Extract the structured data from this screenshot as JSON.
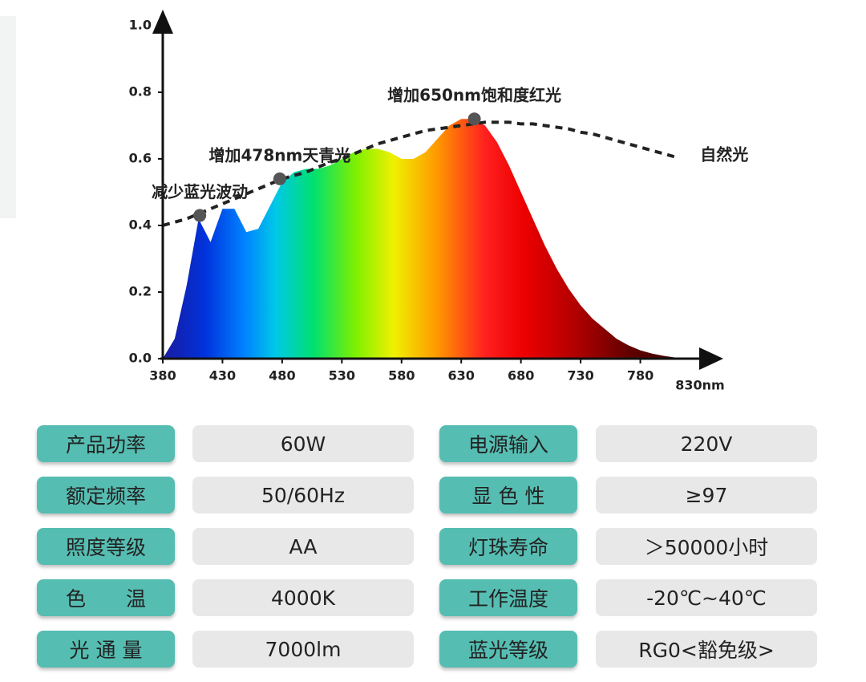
{
  "chart_data": {
    "type": "area",
    "x": [
      380,
      390,
      400,
      410,
      420,
      430,
      440,
      450,
      460,
      470,
      480,
      490,
      500,
      510,
      520,
      530,
      540,
      550,
      560,
      570,
      580,
      590,
      600,
      610,
      620,
      630,
      640,
      650,
      660,
      670,
      680,
      690,
      700,
      710,
      720,
      730,
      740,
      750,
      760,
      770,
      780,
      790,
      800,
      810,
      820
    ],
    "series": [
      {
        "values": [
          0,
          0.06,
          0.22,
          0.42,
          0.35,
          0.45,
          0.45,
          0.38,
          0.39,
          0.46,
          0.53,
          0.56,
          0.57,
          0.57,
          0.58,
          0.6,
          0.62,
          0.63,
          0.63,
          0.62,
          0.6,
          0.6,
          0.62,
          0.66,
          0.7,
          0.72,
          0.72,
          0.7,
          0.65,
          0.58,
          0.5,
          0.42,
          0.34,
          0.27,
          0.21,
          0.16,
          0.12,
          0.09,
          0.06,
          0.04,
          0.025,
          0.015,
          0.008,
          0.003,
          0
        ]
      },
      {
        "name": "自然光",
        "color": "#222222",
        "dashed": true,
        "values": [
          0.4,
          0.41,
          0.42,
          0.435,
          0.45,
          0.465,
          0.48,
          0.495,
          0.51,
          0.525,
          0.54,
          0.55,
          0.56,
          0.575,
          0.59,
          0.6,
          0.615,
          0.63,
          0.645,
          0.655,
          0.665,
          0.675,
          0.685,
          0.69,
          0.695,
          0.7,
          0.705,
          0.71,
          0.71,
          0.71,
          0.705,
          0.705,
          0.7,
          0.695,
          0.69,
          0.68,
          0.675,
          0.665,
          0.655,
          0.645,
          0.635,
          0.625,
          0.615,
          0.605,
          null
        ]
      }
    ],
    "xlim": [
      380,
      830
    ],
    "ylim": [
      0,
      1
    ],
    "xticks": [
      380,
      430,
      480,
      530,
      580,
      630,
      680,
      730,
      780,
      {
        "value": 830,
        "label": "830nm"
      }
    ],
    "yticks": [
      {
        "value": 0,
        "label": "0.0"
      },
      0.2,
      0.4,
      0.6,
      0.8,
      {
        "value": 1,
        "label": "1.0"
      }
    ],
    "annotations": [
      {
        "text": "减少蓝光波动",
        "x": 411,
        "y": 0.43
      },
      {
        "text": "增加478nm天青光",
        "x": 478,
        "y": 0.54
      },
      {
        "text": "增加650nm饱和度红光",
        "x": 641,
        "y": 0.72
      }
    ]
  },
  "table": {
    "rows": [
      [
        "产品功率",
        "60W",
        "电源输入",
        "220V"
      ],
      [
        "额定频率",
        "50/60Hz",
        "显 色 性",
        "≥97"
      ],
      [
        "照度等级",
        "AA",
        "灯珠寿命",
        "＞50000小时"
      ],
      [
        "色　　温",
        "4000K",
        "工作温度",
        "-20℃~40℃"
      ],
      [
        "光 通 量",
        "7000lm",
        "蓝光等级",
        "RG0<豁免级>"
      ]
    ]
  }
}
